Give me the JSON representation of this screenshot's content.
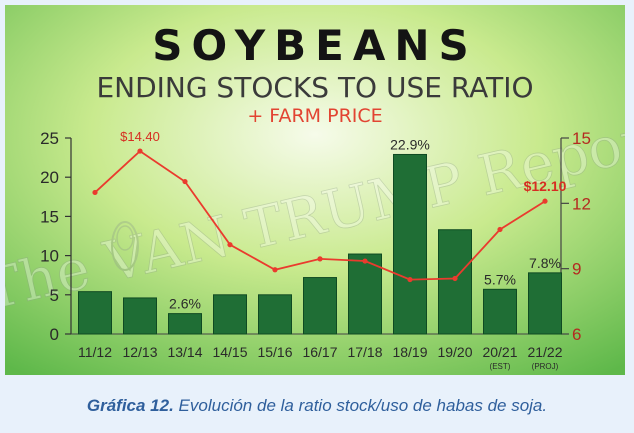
{
  "chart_data": {
    "type": "bar",
    "title": "SOYBEANS",
    "subtitle": "ENDING STOCKS TO USE RATIO",
    "subtitle2": "+ FARM PRICE",
    "watermark": "The VAN TRUMP Report",
    "categories": [
      "11/12",
      "12/13",
      "13/14",
      "14/15",
      "15/16",
      "16/17",
      "17/18",
      "18/19",
      "19/20",
      "20/21",
      "21/22"
    ],
    "category_notes": [
      "",
      "",
      "",
      "",
      "",
      "",
      "",
      "",
      "",
      "(EST)",
      "(PROJ)"
    ],
    "series": [
      {
        "values": [
          5.4,
          4.6,
          2.6,
          5.0,
          5.0,
          7.2,
          10.2,
          22.9,
          13.3,
          5.7,
          7.8
        ]
      },
      {
        "values": [
          12.5,
          14.4,
          13.0,
          10.1,
          8.95,
          9.45,
          9.35,
          8.5,
          8.55,
          10.8,
          12.1
        ]
      }
    ],
    "data_labels": [
      {
        "index": 2,
        "text": "2.6%",
        "series": 0
      },
      {
        "index": 7,
        "text": "22.9%",
        "series": 0
      },
      {
        "index": 9,
        "text": "5.7%",
        "series": 0
      },
      {
        "index": 10,
        "text": "7.8%",
        "series": 0
      },
      {
        "index": 1,
        "text": "$14.40",
        "series": 1
      },
      {
        "index": 10,
        "text": "$12.10",
        "series": 1
      }
    ],
    "y_left": {
      "min": 0,
      "max": 25,
      "ticks": [
        "0",
        "5",
        "10",
        "15",
        "20",
        "25"
      ]
    },
    "y_right": {
      "min": 6,
      "max": 15,
      "ticks": [
        "6",
        "9",
        "12",
        "15"
      ]
    },
    "grid": false,
    "colors": {
      "bar": "#1f6e35",
      "bar_edge": "#0f4a22",
      "line": "#ea3b2e",
      "price_label": "#d62e22",
      "title": "#141414",
      "subtitle": "#3a3a3a",
      "farm_price": "#e24432"
    }
  },
  "caption": {
    "bold": "Gráfica 12.",
    "text": " Evolución de la ratio stock/uso de habas de soja."
  }
}
